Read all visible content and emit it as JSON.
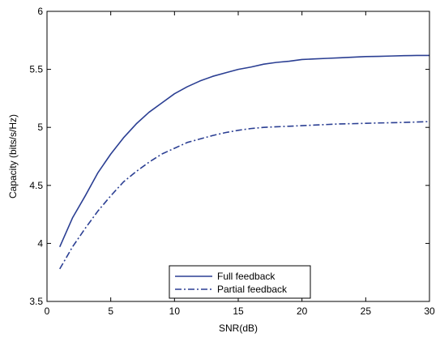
{
  "chart_data": {
    "type": "line",
    "title": "",
    "xlabel": "SNR(dB)",
    "ylabel": "Capacity (bits/s/Hz)",
    "xlim": [
      0,
      30
    ],
    "ylim": [
      3.5,
      6
    ],
    "xticks": [
      0,
      5,
      10,
      15,
      20,
      25,
      30
    ],
    "yticks": [
      3.5,
      4,
      4.5,
      5,
      5.5,
      6
    ],
    "xtick_labels": [
      "0",
      "5",
      "10",
      "15",
      "20",
      "25",
      "30"
    ],
    "ytick_labels": [
      "3.5",
      "4",
      "4.5",
      "5",
      "5.5",
      "6"
    ],
    "grid": false,
    "legend_position": "bottom-center",
    "line_color": "#2b3f93",
    "x": [
      1,
      2,
      3,
      4,
      5,
      6,
      7,
      8,
      9,
      10,
      11,
      12,
      13,
      14,
      15,
      16,
      17,
      18,
      19,
      20,
      21,
      22,
      23,
      24,
      25,
      26,
      27,
      28,
      29,
      30
    ],
    "series": [
      {
        "name": "Full feedback",
        "style": "solid",
        "values": [
          3.97,
          4.22,
          4.41,
          4.61,
          4.77,
          4.91,
          5.03,
          5.13,
          5.21,
          5.29,
          5.35,
          5.4,
          5.44,
          5.47,
          5.5,
          5.52,
          5.545,
          5.56,
          5.57,
          5.585,
          5.59,
          5.595,
          5.6,
          5.605,
          5.61,
          5.612,
          5.615,
          5.618,
          5.62,
          5.62
        ]
      },
      {
        "name": "Partial feedback",
        "style": "dashdot",
        "values": [
          3.78,
          3.97,
          4.13,
          4.28,
          4.41,
          4.53,
          4.62,
          4.7,
          4.77,
          4.82,
          4.87,
          4.9,
          4.93,
          4.955,
          4.975,
          4.99,
          5.0,
          5.005,
          5.01,
          5.015,
          5.02,
          5.025,
          5.03,
          5.032,
          5.035,
          5.038,
          5.04,
          5.043,
          5.046,
          5.05
        ]
      }
    ]
  }
}
